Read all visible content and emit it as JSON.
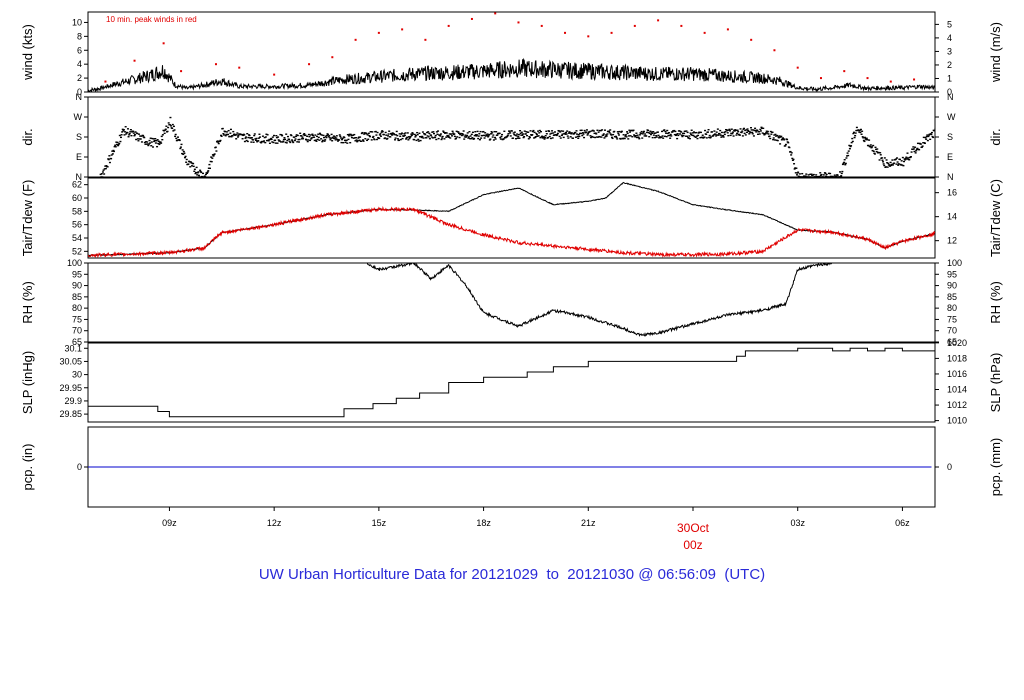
{
  "title": "UW Urban Horticulture Data for 20121029  to  20121030 @ 06:56:09  (UTC)",
  "date_label": {
    "line1": "30Oct",
    "line2": "00z"
  },
  "colors": {
    "primary": "#000000",
    "secondary": "#e00000",
    "precip": "#0000cc",
    "title": "#2a2ad8"
  },
  "x_axis": {
    "start": "2012-10-29 06:40Z",
    "end": "2012-10-30 06:56Z",
    "ticks": [
      {
        "t": "2012-10-29 09:00Z",
        "label": "09z"
      },
      {
        "t": "2012-10-29 12:00Z",
        "label": "12z"
      },
      {
        "t": "2012-10-29 15:00Z",
        "label": "15z"
      },
      {
        "t": "2012-10-29 18:00Z",
        "label": "18z"
      },
      {
        "t": "2012-10-29 21:00Z",
        "label": "21z"
      },
      {
        "t": "2012-10-30 03:00Z",
        "label": "03z"
      },
      {
        "t": "2012-10-30 06:00Z",
        "label": "06z"
      }
    ]
  },
  "chart_data": [
    {
      "type": "line",
      "name": "wind",
      "ylabel": "wind (kts)",
      "ylabel_right": "wind (m/s)",
      "annotation": "10 min. peak winds in red",
      "ylim": [
        0,
        11.5
      ],
      "yticks": [
        0,
        2,
        4,
        6,
        8,
        10
      ],
      "yticks_right": [
        0,
        1,
        2,
        3,
        4,
        5
      ],
      "right_scale": 0.5144,
      "series": [
        {
          "role": "speed",
          "style": "line",
          "color": "#000000",
          "x": [
            "2012-10-29 06:40Z",
            "2012-10-29 07:00Z",
            "2012-10-29 07:30Z",
            "2012-10-29 08:00Z",
            "2012-10-29 08:30Z",
            "2012-10-29 08:50Z",
            "2012-10-29 09:10Z",
            "2012-10-29 09:30Z",
            "2012-10-29 10:00Z",
            "2012-10-29 10:30Z",
            "2012-10-29 11:00Z",
            "2012-10-29 12:00Z",
            "2012-10-29 13:00Z",
            "2012-10-29 14:00Z",
            "2012-10-29 15:00Z",
            "2012-10-29 16:00Z",
            "2012-10-29 17:00Z",
            "2012-10-29 18:00Z",
            "2012-10-29 19:00Z",
            "2012-10-29 20:00Z",
            "2012-10-29 21:00Z",
            "2012-10-29 22:00Z",
            "2012-10-29 23:00Z",
            "2012-10-30 00:00Z",
            "2012-10-30 01:00Z",
            "2012-10-30 02:00Z",
            "2012-10-30 02:30Z",
            "2012-10-30 03:00Z",
            "2012-10-30 03:30Z",
            "2012-10-30 04:00Z",
            "2012-10-30 04:30Z",
            "2012-10-30 05:00Z",
            "2012-10-30 05:30Z",
            "2012-10-30 06:00Z",
            "2012-10-30 06:30Z",
            "2012-10-30 06:56Z"
          ],
          "y": [
            0.2,
            0.5,
            1.2,
            1.8,
            2.5,
            3.2,
            1.0,
            0.5,
            1.0,
            1.6,
            0.8,
            0.8,
            1.0,
            1.8,
            2.2,
            2.6,
            2.8,
            3.0,
            3.4,
            3.2,
            3.0,
            2.8,
            2.6,
            2.6,
            2.3,
            2.0,
            1.6,
            0.6,
            0.4,
            0.6,
            1.0,
            0.5,
            0.6,
            0.6,
            0.8,
            0.6
          ]
        },
        {
          "role": "peak",
          "style": "points",
          "color": "#e00000",
          "x": [
            "2012-10-29 07:10Z",
            "2012-10-29 08:00Z",
            "2012-10-29 08:50Z",
            "2012-10-29 09:20Z",
            "2012-10-29 10:20Z",
            "2012-10-29 11:00Z",
            "2012-10-29 12:00Z",
            "2012-10-29 13:00Z",
            "2012-10-29 13:40Z",
            "2012-10-29 14:20Z",
            "2012-10-29 15:00Z",
            "2012-10-29 15:40Z",
            "2012-10-29 16:20Z",
            "2012-10-29 17:00Z",
            "2012-10-29 17:40Z",
            "2012-10-29 18:20Z",
            "2012-10-29 19:00Z",
            "2012-10-29 19:40Z",
            "2012-10-29 20:20Z",
            "2012-10-29 21:00Z",
            "2012-10-29 21:40Z",
            "2012-10-29 22:20Z",
            "2012-10-29 23:00Z",
            "2012-10-29 23:40Z",
            "2012-10-30 00:20Z",
            "2012-10-30 01:00Z",
            "2012-10-30 01:40Z",
            "2012-10-30 02:20Z",
            "2012-10-30 03:00Z",
            "2012-10-30 03:40Z",
            "2012-10-30 04:20Z",
            "2012-10-30 05:00Z",
            "2012-10-30 05:40Z",
            "2012-10-30 06:20Z"
          ],
          "y": [
            1.5,
            4.5,
            7.0,
            3.0,
            4.0,
            3.5,
            2.5,
            4.0,
            5.0,
            7.5,
            8.5,
            9.0,
            7.5,
            9.5,
            10.5,
            11.3,
            10.0,
            9.5,
            8.5,
            8.0,
            8.5,
            9.5,
            10.3,
            9.5,
            8.5,
            9.0,
            7.5,
            6.0,
            3.5,
            2.0,
            3.0,
            2.0,
            1.5,
            1.8
          ]
        }
      ]
    },
    {
      "type": "scatter",
      "name": "direction",
      "ylabel": "dir.",
      "ylabel_right": "dir.",
      "ylim": [
        0,
        360
      ],
      "ytick_labels": [
        "N",
        "E",
        "S",
        "W",
        "N"
      ],
      "yticks": [
        0,
        90,
        180,
        270,
        360
      ],
      "x": [
        "2012-10-29 07:00Z",
        "2012-10-29 07:40Z",
        "2012-10-29 08:20Z",
        "2012-10-29 08:40Z",
        "2012-10-29 09:00Z",
        "2012-10-29 09:30Z",
        "2012-10-29 10:00Z",
        "2012-10-29 10:30Z",
        "2012-10-29 11:00Z",
        "2012-10-29 12:00Z",
        "2012-10-29 13:00Z",
        "2012-10-29 14:00Z",
        "2012-10-29 15:00Z",
        "2012-10-29 16:00Z",
        "2012-10-29 17:00Z",
        "2012-10-29 18:00Z",
        "2012-10-29 19:00Z",
        "2012-10-29 20:00Z",
        "2012-10-29 21:00Z",
        "2012-10-29 22:00Z",
        "2012-10-29 23:00Z",
        "2012-10-30 00:00Z",
        "2012-10-30 01:00Z",
        "2012-10-30 02:00Z",
        "2012-10-30 02:40Z",
        "2012-10-30 03:00Z",
        "2012-10-30 03:40Z",
        "2012-10-30 04:10Z",
        "2012-10-30 04:40Z",
        "2012-10-30 05:30Z",
        "2012-10-30 06:00Z",
        "2012-10-30 06:30Z",
        "2012-10-30 06:56Z"
      ],
      "y": [
        0,
        210,
        160,
        150,
        250,
        60,
        0,
        210,
        180,
        170,
        180,
        170,
        190,
        180,
        190,
        185,
        190,
        190,
        195,
        190,
        195,
        190,
        200,
        205,
        150,
        0,
        0,
        0,
        220,
        60,
        70,
        150,
        200
      ]
    },
    {
      "type": "line",
      "name": "temperature",
      "ylabel": "Tair/Tdew (F)",
      "ylabel_right": "Tair/Tdew (C)",
      "ylim": [
        51,
        63
      ],
      "yticks": [
        52,
        54,
        56,
        58,
        60,
        62
      ],
      "yticks_right": [
        12,
        14,
        16
      ],
      "series": [
        {
          "role": "Tair",
          "color": "#000000",
          "x": [
            "2012-10-29 06:40Z",
            "2012-10-29 08:00Z",
            "2012-10-29 09:00Z",
            "2012-10-29 10:00Z",
            "2012-10-29 10:30Z",
            "2012-10-29 12:00Z",
            "2012-10-29 13:30Z",
            "2012-10-29 15:00Z",
            "2012-10-29 16:00Z",
            "2012-10-29 17:00Z",
            "2012-10-29 18:00Z",
            "2012-10-29 19:00Z",
            "2012-10-29 20:00Z",
            "2012-10-29 21:00Z",
            "2012-10-29 21:30Z",
            "2012-10-29 22:00Z",
            "2012-10-29 23:00Z",
            "2012-10-30 00:00Z",
            "2012-10-30 01:00Z",
            "2012-10-30 02:00Z",
            "2012-10-30 03:00Z",
            "2012-10-30 04:00Z",
            "2012-10-30 05:00Z",
            "2012-10-30 05:30Z",
            "2012-10-30 06:00Z",
            "2012-10-30 06:56Z"
          ],
          "y": [
            51.4,
            51.6,
            51.8,
            52.5,
            54.8,
            56.0,
            57.5,
            58.3,
            58.2,
            58.0,
            60.5,
            61.5,
            59.0,
            59.5,
            60.0,
            62.3,
            61.0,
            59.0,
            58.2,
            57.5,
            55.2,
            54.9,
            53.8,
            52.5,
            53.5,
            54.7
          ]
        },
        {
          "role": "Tdew",
          "color": "#e00000",
          "x": [
            "2012-10-29 06:40Z",
            "2012-10-29 08:00Z",
            "2012-10-29 09:00Z",
            "2012-10-29 10:00Z",
            "2012-10-29 10:30Z",
            "2012-10-29 12:00Z",
            "2012-10-29 13:30Z",
            "2012-10-29 15:00Z",
            "2012-10-29 16:00Z",
            "2012-10-29 17:00Z",
            "2012-10-29 18:00Z",
            "2012-10-29 19:00Z",
            "2012-10-29 20:00Z",
            "2012-10-29 21:00Z",
            "2012-10-29 22:00Z",
            "2012-10-29 23:00Z",
            "2012-10-30 00:00Z",
            "2012-10-30 01:00Z",
            "2012-10-30 02:00Z",
            "2012-10-30 03:00Z",
            "2012-10-30 04:00Z",
            "2012-10-30 05:00Z",
            "2012-10-30 05:30Z",
            "2012-10-30 06:00Z",
            "2012-10-30 06:56Z"
          ],
          "y": [
            51.4,
            51.6,
            51.8,
            52.5,
            54.8,
            56.0,
            57.5,
            58.3,
            58.3,
            56.0,
            54.5,
            53.3,
            52.8,
            52.3,
            51.8,
            51.5,
            51.5,
            51.6,
            52.0,
            55.2,
            54.9,
            53.8,
            52.5,
            53.5,
            54.7
          ]
        }
      ]
    },
    {
      "type": "line",
      "name": "humidity",
      "ylabel": "RH (%)",
      "ylabel_right": "RH (%)",
      "ylim": [
        65,
        100
      ],
      "yticks": [
        65,
        70,
        75,
        80,
        85,
        90,
        95,
        100
      ],
      "series": [
        {
          "role": "RH",
          "color": "#000000",
          "x": [
            "2012-10-29 14:40Z",
            "2012-10-29 15:00Z",
            "2012-10-29 16:00Z",
            "2012-10-29 16:30Z",
            "2012-10-29 17:00Z",
            "2012-10-29 17:30Z",
            "2012-10-29 18:00Z",
            "2012-10-29 19:00Z",
            "2012-10-29 20:00Z",
            "2012-10-29 21:00Z",
            "2012-10-29 22:00Z",
            "2012-10-29 22:30Z",
            "2012-10-29 23:00Z",
            "2012-10-30 00:00Z",
            "2012-10-30 01:00Z",
            "2012-10-30 02:00Z",
            "2012-10-30 02:40Z",
            "2012-10-30 03:00Z",
            "2012-10-30 03:30Z",
            "2012-10-30 04:00Z"
          ],
          "y": [
            100,
            97,
            100,
            93,
            99,
            90,
            78,
            72,
            79,
            76,
            71,
            68,
            69,
            73,
            77,
            79,
            82,
            97,
            99,
            100
          ]
        }
      ]
    },
    {
      "type": "line",
      "name": "pressure",
      "ylabel": "SLP (inHg)",
      "ylabel_right": "SLP (hPa)",
      "ylim": [
        29.82,
        30.12
      ],
      "yticks": [
        29.85,
        29.9,
        29.95,
        30.0,
        30.05,
        30.1
      ],
      "yticks_right": [
        1010,
        1012,
        1014,
        1016,
        1018,
        1020
      ],
      "series": [
        {
          "role": "SLP",
          "color": "#000000",
          "x": [
            "2012-10-29 06:40Z",
            "2012-10-29 08:40Z",
            "2012-10-29 09:00Z",
            "2012-10-29 14:00Z",
            "2012-10-29 14:50Z",
            "2012-10-29 15:30Z",
            "2012-10-29 16:10Z",
            "2012-10-29 17:00Z",
            "2012-10-29 18:00Z",
            "2012-10-29 19:15Z",
            "2012-10-29 20:00Z",
            "2012-10-29 21:00Z",
            "2012-10-30 01:15Z",
            "2012-10-30 01:30Z",
            "2012-10-30 03:00Z",
            "2012-10-30 04:00Z",
            "2012-10-30 04:30Z",
            "2012-10-30 05:00Z",
            "2012-10-30 05:30Z",
            "2012-10-30 06:00Z",
            "2012-10-30 06:56Z"
          ],
          "y": [
            29.88,
            29.86,
            29.84,
            29.87,
            29.89,
            29.91,
            29.93,
            29.97,
            29.99,
            30.01,
            30.03,
            30.05,
            30.07,
            30.09,
            30.1,
            30.09,
            30.1,
            30.09,
            30.1,
            30.09,
            30.09
          ]
        }
      ]
    },
    {
      "type": "line",
      "name": "precipitation",
      "ylabel": "pcp. (in)",
      "ylabel_right": "pcp. (mm)",
      "ylim": [
        -1,
        1
      ],
      "yticks": [
        0
      ],
      "series": [
        {
          "role": "pcp",
          "color": "#0000cc",
          "x": [
            "2012-10-29 06:40Z",
            "2012-10-30 06:56Z"
          ],
          "y": [
            0,
            0
          ]
        }
      ]
    }
  ]
}
